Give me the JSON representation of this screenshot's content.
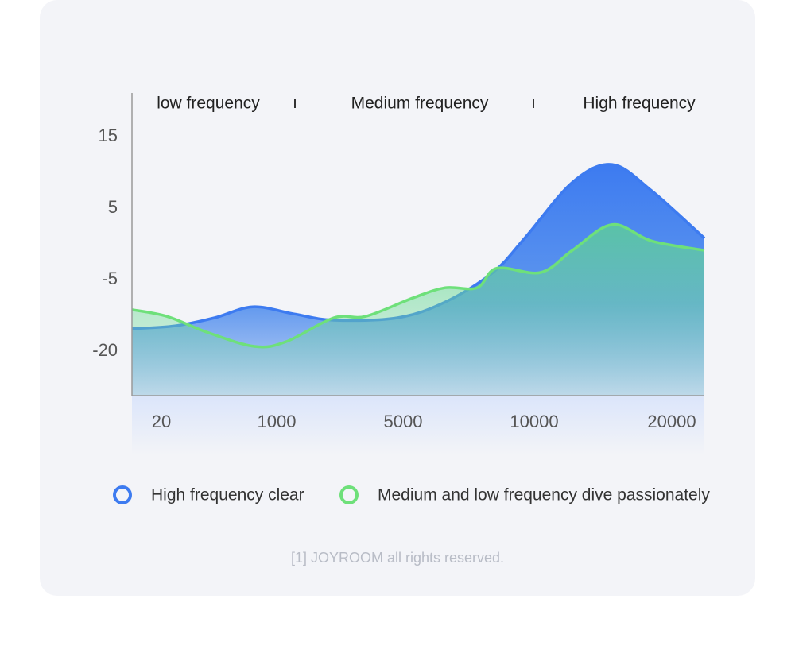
{
  "chart_data": {
    "type": "area",
    "bands": [
      "low frequency",
      "Medium frequency",
      "High frequency"
    ],
    "xlim": [
      0,
      22000
    ],
    "xticks": [
      20,
      1000,
      5000,
      10000,
      20000
    ],
    "ylim": [
      -30,
      21
    ],
    "yticks": [
      15,
      5,
      -5,
      -20
    ],
    "series": [
      {
        "name": "High frequency clear",
        "color": "#3d7bf0",
        "x": [
          0,
          135,
          473,
          797,
          1553,
          2811,
          4824,
          6606,
          8424,
          9636,
          12775,
          15665,
          18555,
          22000
        ],
        "values": [
          -15.3,
          -14.7,
          -13,
          -10.7,
          -12.2,
          -13.5,
          -13,
          -9.7,
          -4,
          0.8,
          8.6,
          11.1,
          7.4,
          0.8
        ]
      },
      {
        "name": "Medium and low frequency dive passionately",
        "color": "#6ee07a",
        "x": [
          0,
          67,
          405,
          811,
          1302,
          2811,
          3818,
          5394,
          6606,
          7818,
          8576,
          10462,
          12775,
          15665,
          18555,
          22000
        ],
        "values": [
          -11.3,
          -12.7,
          -16,
          -19,
          -18,
          -13,
          -12.7,
          -8.8,
          -6.7,
          -6.7,
          -3.4,
          -4,
          -0.9,
          2.7,
          0.4,
          -0.9
        ]
      }
    ],
    "footer": "[1] JOYROOM all rights reserved."
  }
}
